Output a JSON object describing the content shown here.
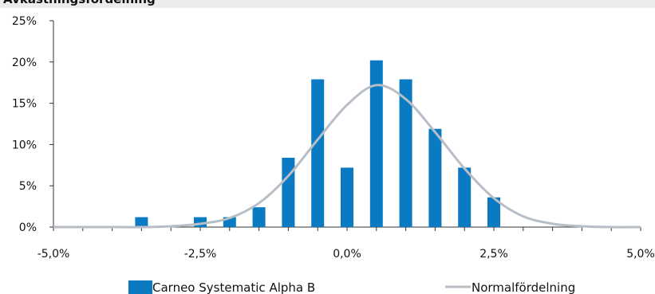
{
  "title": "Avkastningsfördelning",
  "chart_data": {
    "type": "bar",
    "title": "Avkastningsfördelning",
    "xlabel": "",
    "ylabel": "",
    "xlim": [
      -5.0,
      5.0
    ],
    "ylim": [
      0,
      25
    ],
    "x_ticks": [
      -5.0,
      -4.5,
      -4.0,
      -3.5,
      -3.0,
      -2.5,
      -2.0,
      -1.5,
      -1.0,
      -0.5,
      0.0,
      0.5,
      1.0,
      1.5,
      2.0,
      2.5,
      3.0,
      3.5,
      4.0,
      4.5,
      5.0
    ],
    "x_tick_labels": [
      "-5,0%",
      "-2,5%",
      "0,0%",
      "2,5%",
      "5,0%"
    ],
    "x_tick_label_values": [
      -5.0,
      -2.5,
      0.0,
      2.5,
      5.0
    ],
    "y_ticks": [
      0,
      5,
      10,
      15,
      20,
      25
    ],
    "y_tick_labels": [
      "0%",
      "5%",
      "10%",
      "15%",
      "20%",
      "25%"
    ],
    "grid": false,
    "legend_position": "bottom",
    "series": [
      {
        "name": "Carneo Systematic Alpha B",
        "kind": "bar",
        "color": "#0a7bc2",
        "x": [
          -3.5,
          -2.5,
          -2.0,
          -1.5,
          -1.0,
          -0.5,
          0.0,
          0.5,
          1.0,
          1.5,
          2.0,
          2.5
        ],
        "values": [
          1.2,
          1.2,
          1.2,
          2.4,
          8.4,
          17.9,
          7.2,
          20.2,
          17.9,
          11.9,
          7.2,
          3.6
        ]
      },
      {
        "name": "Normalfördelning",
        "kind": "line",
        "color": "#b8bec6",
        "x": [
          -5.0,
          -4.5,
          -4.0,
          -3.5,
          -3.0,
          -2.5,
          -2.0,
          -1.5,
          -1.0,
          -0.5,
          0.0,
          0.5,
          1.0,
          1.5,
          2.0,
          2.5,
          3.0,
          3.5,
          4.0,
          4.5,
          5.0
        ],
        "values": [
          0.0,
          0.0,
          0.0,
          0.0,
          0.1,
          0.4,
          1.1,
          2.9,
          6.2,
          10.6,
          14.8,
          17.2,
          15.5,
          11.5,
          7.1,
          3.5,
          1.3,
          0.4,
          0.1,
          0.0,
          0.0
        ]
      }
    ]
  }
}
